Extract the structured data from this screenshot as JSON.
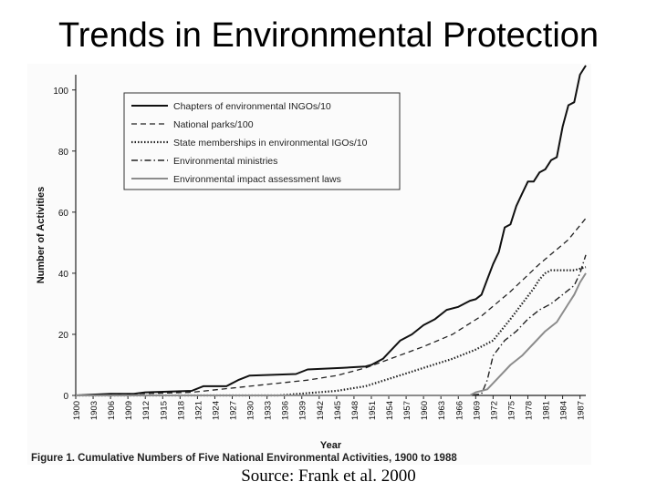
{
  "slide": {
    "title": "Trends in Environmental Protection",
    "source": "Source:  Frank et al. 2000"
  },
  "chart_data": {
    "type": "line",
    "title": "",
    "caption": "Figure 1. Cumulative Numbers of Five National Environmental Activities, 1900 to 1988",
    "xlabel": "Year",
    "ylabel": "Number of Activities",
    "xlim": [
      1900,
      1988
    ],
    "ylim": [
      0,
      105
    ],
    "yticks": [
      0,
      20,
      40,
      60,
      80,
      100
    ],
    "xticks": [
      "1900",
      "1903",
      "1906",
      "1909",
      "1912",
      "1915",
      "1918",
      "1921",
      "1924",
      "1927",
      "1930",
      "1933",
      "1936",
      "1939",
      "1942",
      "1945",
      "1948",
      "1951",
      "1954",
      "1957",
      "1960",
      "1963",
      "1966",
      "1969",
      "1972",
      "1975",
      "1978",
      "1981",
      "1984",
      "1987"
    ],
    "legend_position": "top-left",
    "series": [
      {
        "name": "Chapters of environmental INGOs/10",
        "style": "solid",
        "color": "#111111",
        "x": [
          1900,
          1906,
          1910,
          1912,
          1920,
          1922,
          1926,
          1928,
          1930,
          1938,
          1940,
          1946,
          1950,
          1951,
          1953,
          1954,
          1956,
          1958,
          1960,
          1962,
          1964,
          1966,
          1968,
          1969,
          1970,
          1971,
          1972,
          1973,
          1974,
          1975,
          1976,
          1977,
          1978,
          1979,
          1980,
          1981,
          1982,
          1983,
          1984,
          1985,
          1986,
          1987,
          1988
        ],
        "y": [
          0,
          0.5,
          0.5,
          1,
          1.5,
          3,
          3,
          5,
          6.5,
          7,
          8.5,
          9,
          9.5,
          10,
          12,
          14,
          18,
          20,
          23,
          25,
          28,
          29,
          31,
          31.5,
          33,
          38,
          43,
          47,
          55,
          56,
          62,
          66,
          70,
          70,
          73,
          74,
          77,
          78,
          88,
          95,
          96,
          105,
          108
        ]
      },
      {
        "name": "National parks/100",
        "style": "dashed",
        "color": "#222222",
        "x": [
          1900,
          1910,
          1920,
          1930,
          1940,
          1945,
          1950,
          1955,
          1960,
          1965,
          1970,
          1975,
          1980,
          1985,
          1988
        ],
        "y": [
          0,
          0.5,
          1,
          3,
          5,
          6.5,
          9,
          12.5,
          16,
          20,
          26,
          34,
          43,
          51,
          58
        ]
      },
      {
        "name": "State memberships in environmental IGOs/10",
        "style": "dotted",
        "color": "#222222",
        "x": [
          1900,
          1920,
          1935,
          1945,
          1950,
          1955,
          1960,
          1965,
          1969,
          1972,
          1975,
          1977,
          1979,
          1980,
          1981,
          1982,
          1983,
          1984,
          1985,
          1986,
          1988
        ],
        "y": [
          0,
          0,
          0,
          1.5,
          3,
          6,
          9,
          12,
          15,
          18,
          25,
          30,
          35,
          38,
          40,
          41,
          41,
          41,
          41,
          41,
          42
        ]
      },
      {
        "name": "Environmental ministries",
        "style": "dashdot",
        "color": "#222222",
        "x": [
          1900,
          1968,
          1970,
          1971,
          1972,
          1974,
          1976,
          1978,
          1980,
          1982,
          1984,
          1986,
          1987,
          1988
        ],
        "y": [
          0,
          0,
          0.5,
          5,
          13,
          18,
          21,
          25,
          28,
          30,
          33,
          36,
          40,
          46
        ]
      },
      {
        "name": "Environmental impact assessment laws",
        "style": "solid",
        "color": "#8c8c8c",
        "x": [
          1900,
          1968,
          1969,
          1971,
          1973,
          1975,
          1977,
          1979,
          1981,
          1983,
          1985,
          1986,
          1987,
          1988
        ],
        "y": [
          0,
          0,
          1,
          2,
          6,
          10,
          13,
          17,
          21,
          24,
          30,
          33,
          37,
          40
        ]
      }
    ]
  }
}
